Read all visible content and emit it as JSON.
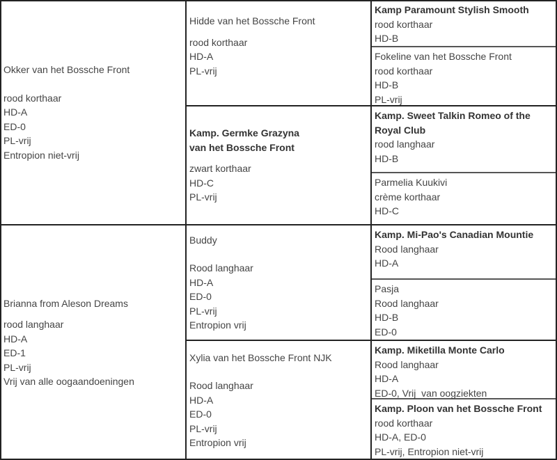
{
  "parents": [
    {
      "name": "Okker van het Bossche Front",
      "lines": [
        "rood korthaar",
        "HD-A",
        "ED-0",
        "PL-vrij",
        "Entropion niet-vrij"
      ]
    },
    {
      "name": "Brianna from Aleson Dreams",
      "lines": [
        "rood langhaar",
        "HD-A",
        "ED-1",
        "PL-vrij",
        "Vrij van alle oogaandoeningen"
      ]
    }
  ],
  "grandparents": [
    {
      "name": "Hidde van het Bossche Front",
      "lines": [
        "rood korthaar",
        "HD-A",
        "PL-vrij"
      ]
    },
    {
      "name_line1": "Kamp. Germke Grazyna",
      "name_line2": "van het Bossche Front",
      "lines": [
        "zwart korthaar",
        "HD-C",
        "PL-vrij"
      ]
    },
    {
      "name": "Buddy",
      "lines": [
        "Rood langhaar",
        "HD-A",
        "ED-0",
        "PL-vrij",
        "Entropion vrij"
      ]
    },
    {
      "name": "Xylia van het Bossche Front NJK",
      "lines": [
        "Rood langhaar",
        "HD-A",
        "ED-0",
        "PL-vrij",
        "Entropion vrij"
      ]
    }
  ],
  "great_grandparents": [
    {
      "name": "Kamp Paramount Stylish Smooth",
      "lines": [
        "rood korthaar",
        "HD-B"
      ]
    },
    {
      "name": "Fokeline van het Bossche Front",
      "lines": [
        "rood korthaar",
        "HD-B",
        "PL-vrij"
      ]
    },
    {
      "name": "Kamp. Sweet Talkin Romeo of the Royal Club",
      "lines": [
        "rood langhaar",
        "HD-B"
      ]
    },
    {
      "name": "Parmelia Kuukivi",
      "lines": [
        "crème korthaar",
        "HD-C"
      ]
    },
    {
      "name": "Kamp. Mi-Pao's Canadian Mountie",
      "lines": [
        "Rood langhaar",
        "HD-A"
      ]
    },
    {
      "name": "Pasja",
      "lines": [
        "Rood langhaar",
        "HD-B",
        "ED-0"
      ]
    },
    {
      "name": "Kamp. Miketilla Monte Carlo",
      "lines": [
        "Rood langhaar",
        "HD-A",
        "ED-0, Vrij  van oogziekten"
      ]
    },
    {
      "name": "Kamp. Ploon van het Bossche Front",
      "lines": [
        "rood korthaar",
        "HD-A, ED-0",
        "PL-vrij, Entropion niet-vrij"
      ]
    }
  ]
}
